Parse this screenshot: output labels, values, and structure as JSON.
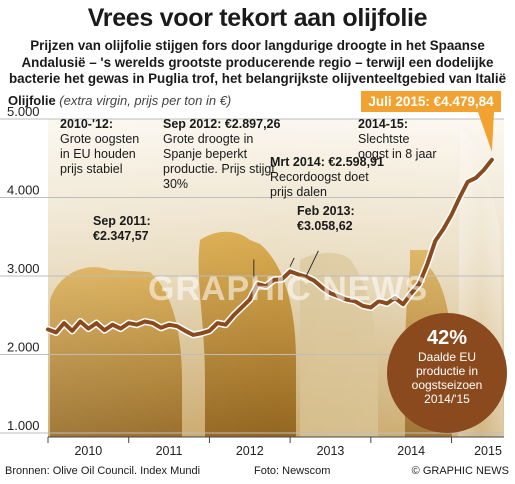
{
  "header": {
    "title": "Vrees voor tekort aan olijfolie",
    "subtitle": "Prijzen van olijfolie stijgen fors door langdurige droogte in het Spaanse Andalusië – 's werelds grootste producerende regio – terwijl een dodelijke bacterie het gewas in Puglia trof, het belangrijkste olijventeeltgebied van Italië"
  },
  "chart_label": {
    "main": "Olijfolie",
    "detail": "(extra virgin, prijs per ton in €)"
  },
  "chart_data": {
    "type": "line",
    "ylim": [
      1000,
      5000
    ],
    "yticks": [
      "5.000",
      "4.000",
      "3.000",
      "2.000",
      "1.000"
    ],
    "yticks_values": [
      5000,
      4000,
      3000,
      2000,
      1000
    ],
    "xticks": [
      "2010",
      "2011",
      "2012",
      "2013",
      "2014",
      "2015"
    ],
    "xlim": [
      2010.0,
      2015.65
    ],
    "grid": true,
    "series": [
      {
        "x": [
          2010.0,
          2010.1,
          2010.2,
          2010.3,
          2010.4,
          2010.5,
          2010.6,
          2010.7,
          2010.8,
          2010.9,
          2011.0,
          2011.1,
          2011.2,
          2011.3,
          2011.4,
          2011.5,
          2011.6,
          2011.7,
          2011.8,
          2011.9,
          2012.0,
          2012.1,
          2012.2,
          2012.3,
          2012.4,
          2012.5,
          2012.6,
          2012.7,
          2012.8,
          2012.9,
          2013.0,
          2013.1,
          2013.2,
          2013.3,
          2013.4,
          2013.5,
          2013.6,
          2013.7,
          2013.8,
          2013.9,
          2014.0,
          2014.1,
          2014.2,
          2014.3,
          2014.4,
          2014.5,
          2014.6,
          2014.7,
          2014.8,
          2014.9,
          2015.0,
          2015.1,
          2015.2,
          2015.3,
          2015.4,
          2015.5
        ],
        "y": [
          2320,
          2280,
          2400,
          2300,
          2420,
          2330,
          2400,
          2310,
          2380,
          2330,
          2400,
          2380,
          2420,
          2400,
          2340,
          2380,
          2360,
          2300,
          2250,
          2270,
          2300,
          2400,
          2380,
          2500,
          2600,
          2700,
          2897,
          2870,
          2950,
          2960,
          3058,
          3020,
          2990,
          2940,
          2850,
          2780,
          2740,
          2700,
          2680,
          2620,
          2599,
          2680,
          2650,
          2720,
          2640,
          2780,
          2900,
          3150,
          3450,
          3600,
          3780,
          4000,
          4200,
          4250,
          4350,
          4480
        ]
      }
    ]
  },
  "callout": {
    "label": "Juli 2015: €4.479,84"
  },
  "annotations": [
    {
      "head": "2010-'12:",
      "text": "Grote oogsten\nin EU houden\nprijs stabiel"
    },
    {
      "head": "Sep 2011:",
      "text": "€2.347,57"
    },
    {
      "head": "Sep 2012: €2.897,26",
      "text": "Grote droogte in\nSpanje beperkt\nproductie. Prijs stijgt\n30%"
    },
    {
      "head": "Mrt 2014: €2.598,91",
      "text": "Recordoogst doet\nprijs dalen"
    },
    {
      "head": "Feb 2013:",
      "text": "€3.058,62"
    },
    {
      "head": "2014-15:",
      "text": "Slechtste\noogst in 8 jaar"
    }
  ],
  "circle": {
    "pct": "42%",
    "text": "Daalde EU\nproductie in\noogstseizoen\n2014/'15"
  },
  "footer": {
    "source": "Bronnen: Olive Oil Council. Index Mundi",
    "photo": "Foto: Newscom",
    "credit": "© GRAPHIC NEWS"
  },
  "watermark": "GRAPHIC NEWS",
  "colors": {
    "line": "#8b4a1e",
    "accent": "#f2a230",
    "grid": "#bdbdbd"
  }
}
